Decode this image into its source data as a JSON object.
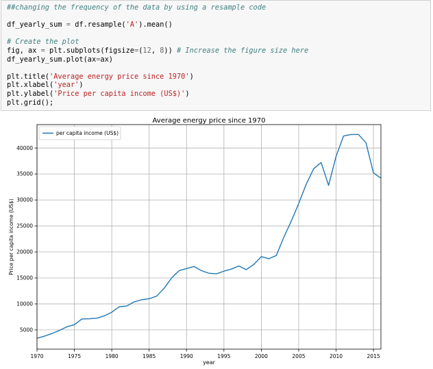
{
  "code_cell": {
    "comment_1": "##changing the frequency of the data by using a resample code",
    "line_resample": {
      "target": "df_yearly_sum",
      "op": " = ",
      "call_prefix": "df.resample(",
      "arg": "'A'",
      "call_suffix": ").mean()"
    },
    "comment_2": "# Create the plot",
    "line_subplots": {
      "lhs": "fig, ax ",
      "op": "=",
      "call_prefix": " plt.subplots(figsize",
      "eq": "=",
      "paren_open": "(",
      "num_a": "12",
      "comma": ", ",
      "num_b": "8",
      "paren_close": ")) ",
      "comment": "# Increase the figure size here"
    },
    "line_plot": {
      "prefix": "df_yearly_sum.plot(ax",
      "eq": "=",
      "suffix": "ax)"
    },
    "line_title": {
      "prefix": "plt.title(",
      "arg": "'Average energy price since 1970'",
      "suffix": ")"
    },
    "line_xlabel": {
      "prefix": "plt.xlabel(",
      "arg": "'year'",
      "suffix": ")"
    },
    "line_ylabel": {
      "prefix": "plt.ylabel(",
      "arg": "'Price per capita income (US$)'",
      "suffix": ")"
    },
    "line_grid": "plt.grid();"
  },
  "chart_data": {
    "type": "line",
    "title": "Average energy price since 1970",
    "xlabel": "year",
    "ylabel": "Price per capita income (US$)",
    "legend": {
      "label": "per capita income (US$)",
      "placement": "top-left"
    },
    "grid": true,
    "line_color": "#1f77b4",
    "xlim": [
      1970,
      2016
    ],
    "ylim": [
      1300,
      44500
    ],
    "x_ticks": [
      1970,
      1975,
      1980,
      1985,
      1990,
      1995,
      2000,
      2005,
      2010,
      2015
    ],
    "y_ticks": [
      5000,
      10000,
      15000,
      20000,
      25000,
      30000,
      35000,
      40000
    ],
    "series": [
      {
        "name": "per capita income (US$)",
        "x": [
          1970,
          1971,
          1972,
          1973,
          1974,
          1975,
          1976,
          1977,
          1978,
          1979,
          1980,
          1981,
          1982,
          1983,
          1984,
          1985,
          1986,
          1987,
          1988,
          1989,
          1990,
          1991,
          1992,
          1993,
          1994,
          1995,
          1996,
          1997,
          1998,
          1999,
          2000,
          2001,
          2002,
          2003,
          2004,
          2005,
          2006,
          2007,
          2008,
          2009,
          2010,
          2011,
          2012,
          2013,
          2014,
          2015,
          2016
        ],
        "values": [
          3400,
          3800,
          4300,
          4900,
          5600,
          6000,
          7100,
          7150,
          7250,
          7700,
          8400,
          9450,
          9600,
          10400,
          10800,
          11000,
          11500,
          13000,
          15000,
          16400,
          16800,
          17200,
          16400,
          15900,
          15800,
          16300,
          16700,
          17300,
          16600,
          17600,
          19100,
          18700,
          19300,
          22800,
          25900,
          29300,
          33000,
          36000,
          37200,
          32800,
          38400,
          42300,
          42600,
          42600,
          41000,
          35200,
          34200
        ]
      }
    ]
  }
}
